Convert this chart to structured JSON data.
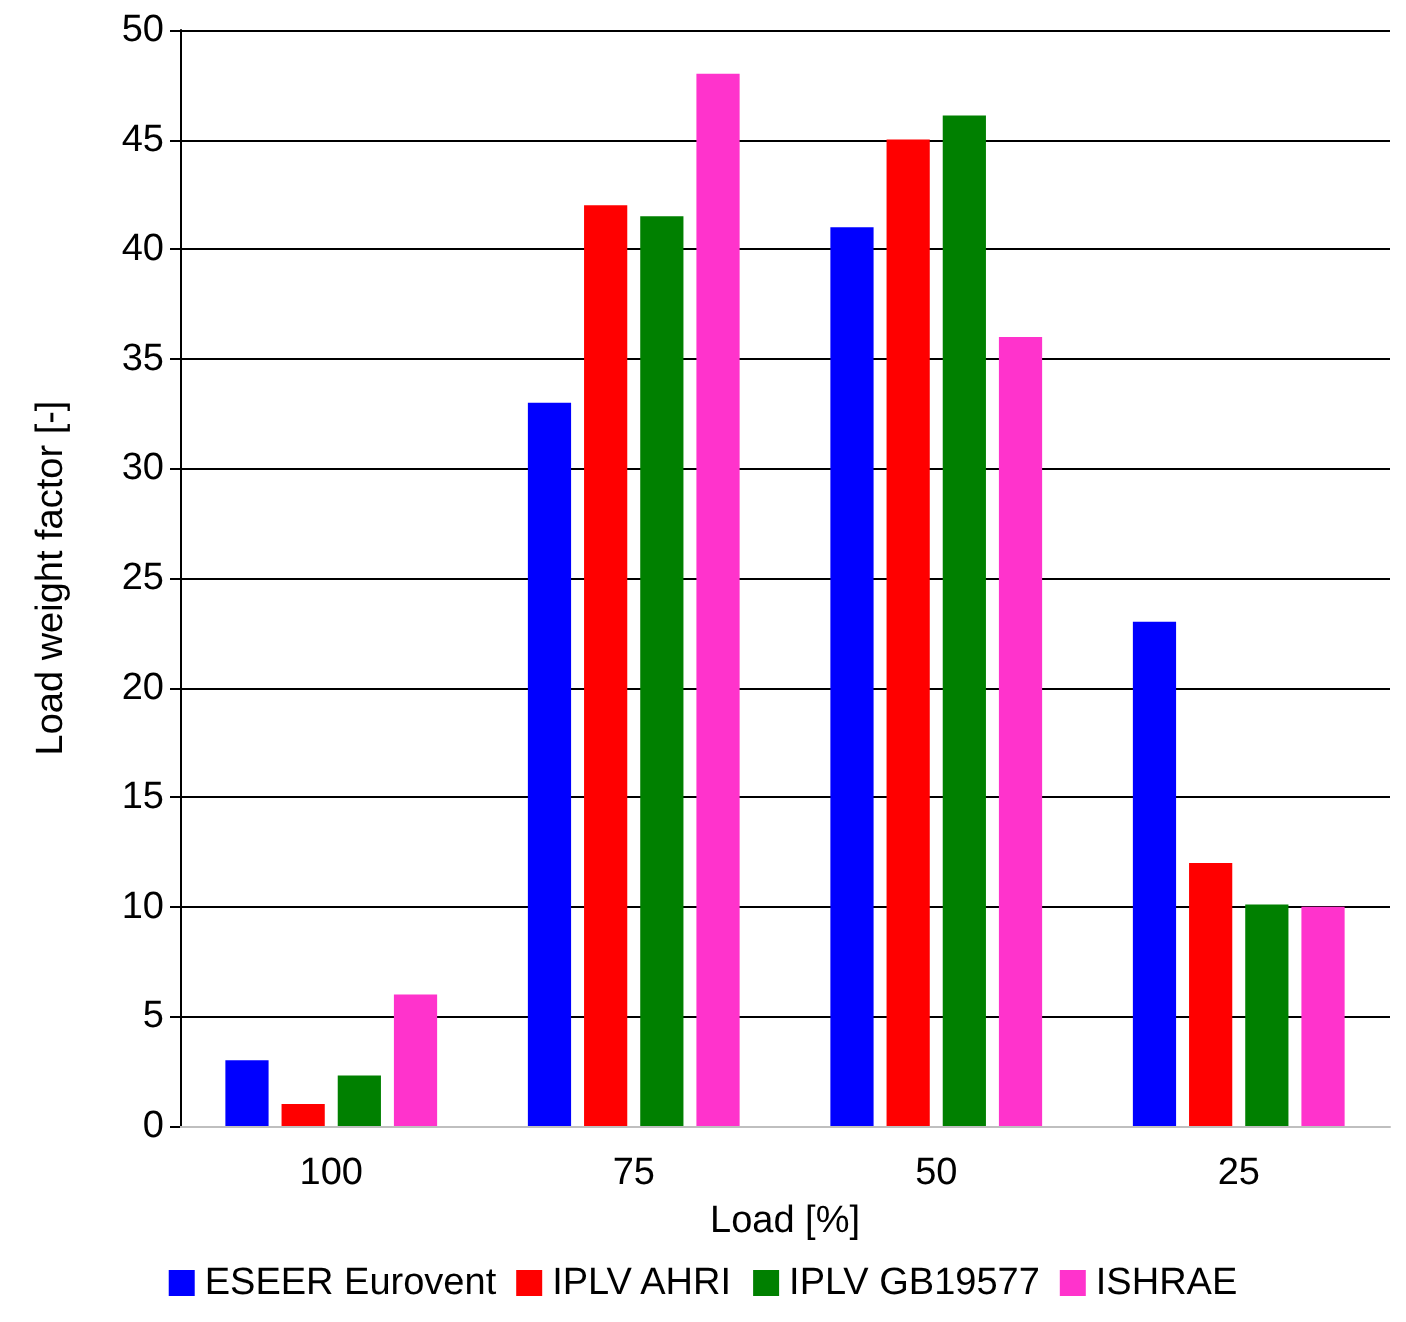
{
  "chart_data": {
    "type": "bar",
    "xlabel": "Load [%]",
    "ylabel": "Load weight factor [-]",
    "categories": [
      "100",
      "75",
      "50",
      "25"
    ],
    "series": [
      {
        "name": "ESEER Eurovent",
        "color": "#0000ff",
        "values": [
          3,
          33,
          41,
          23
        ]
      },
      {
        "name": "IPLV AHRI",
        "color": "#ff0000",
        "values": [
          1,
          42,
          45,
          12
        ]
      },
      {
        "name": "IPLV GB19577",
        "color": "#008000",
        "values": [
          2.3,
          41.5,
          46.1,
          10.1
        ]
      },
      {
        "name": "ISHRAE",
        "color": "#ff33cc",
        "values": [
          6,
          48,
          36,
          10
        ]
      }
    ],
    "ylim": [
      0,
      50
    ],
    "yticks": [
      0,
      5,
      10,
      15,
      20,
      25,
      30,
      35,
      40,
      45,
      50
    ],
    "grid": "y",
    "legend": "bottom"
  }
}
